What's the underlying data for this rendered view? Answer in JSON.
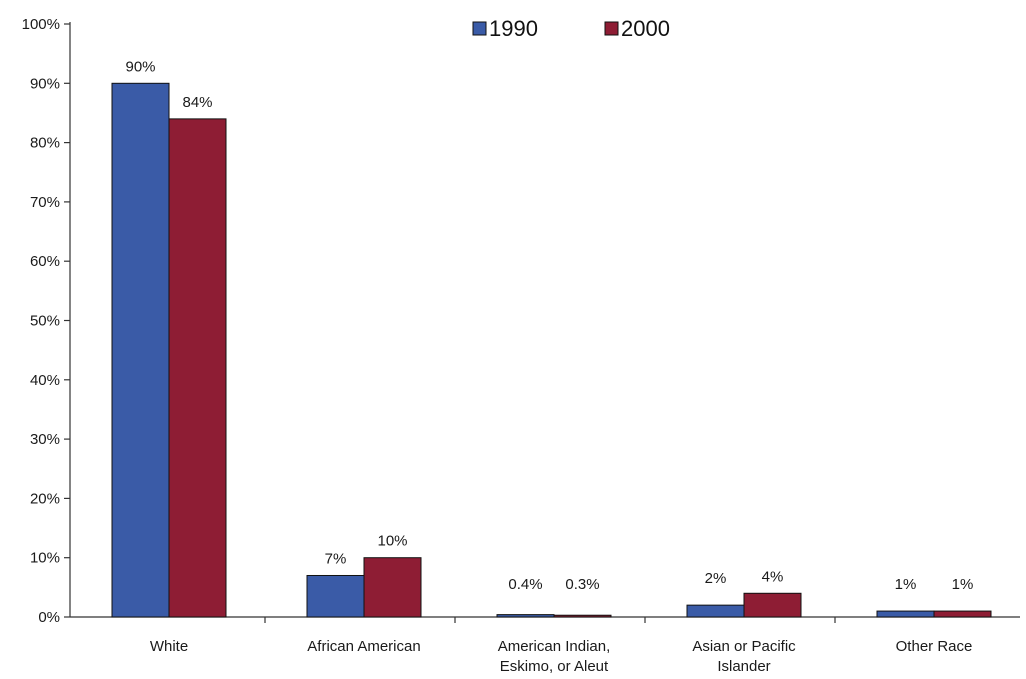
{
  "chart_data": {
    "type": "bar",
    "categories": [
      [
        "White"
      ],
      [
        "African American"
      ],
      [
        "American Indian,",
        "Eskimo, or Aleut"
      ],
      [
        "Asian or Pacific",
        "Islander"
      ],
      [
        "Other Race"
      ]
    ],
    "series": [
      {
        "name": "1990",
        "color": "#3a5ba7",
        "values": [
          90,
          7,
          0.4,
          2,
          1
        ],
        "labels": [
          "90%",
          "7%",
          "0.4%",
          "2%",
          "1%"
        ]
      },
      {
        "name": "2000",
        "color": "#8e1d34",
        "values": [
          84,
          10,
          0.3,
          4,
          1
        ],
        "labels": [
          "84%",
          "10%",
          "0.3%",
          "4%",
          "1%"
        ]
      }
    ],
    "y_ticks": [
      "0%",
      "10%",
      "20%",
      "30%",
      "40%",
      "50%",
      "60%",
      "70%",
      "80%",
      "90%",
      "100%"
    ],
    "ylim": [
      0,
      100
    ],
    "legend_position": "top-center",
    "grid": false
  }
}
